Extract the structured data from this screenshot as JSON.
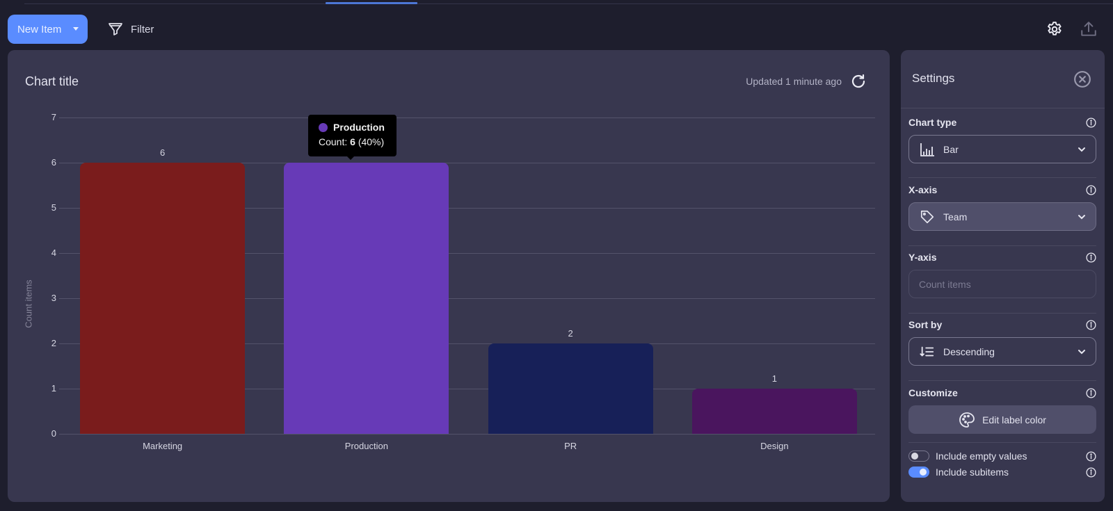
{
  "toolbar": {
    "new_item_label": "New Item",
    "filter_label": "Filter",
    "icons": {
      "filter": "filter-funnel-icon",
      "settings": "gear-icon",
      "export": "upload-icon"
    }
  },
  "colors": {
    "background": "#1e1e2d",
    "card": "#38374f",
    "primary": "#5a8cff",
    "tab_indicator": "#4d77d6"
  },
  "chart_card": {
    "title": "Chart title",
    "updated_text": "Updated 1 minute ago",
    "refresh_icon": "refresh-icon"
  },
  "tooltip": {
    "series": "Production",
    "color": "#673ab7",
    "count_prefix": "Count: ",
    "count_value": "6",
    "count_pct": " (40%)"
  },
  "chart_data": {
    "type": "bar",
    "title": "Chart title",
    "xlabel": "",
    "ylabel": "Count items",
    "categories": [
      "Marketing",
      "Production",
      "PR",
      "Design"
    ],
    "values": [
      6,
      6,
      2,
      1
    ],
    "colors": [
      "#7a1c1c",
      "#673ab7",
      "#172058",
      "#4a155e"
    ],
    "yticks": [
      0,
      1,
      2,
      3,
      4,
      5,
      6,
      7
    ],
    "ylim": [
      0,
      7
    ],
    "grid": true,
    "legend": "none",
    "data_labels": true
  },
  "settings": {
    "title": "Settings",
    "close_icon": "close-circle-icon",
    "chart_type": {
      "label": "Chart type",
      "value": "Bar",
      "icon": "bar-chart-icon"
    },
    "x_axis": {
      "label": "X-axis",
      "value": "Team",
      "icon": "tag-icon"
    },
    "y_axis": {
      "label": "Y-axis",
      "placeholder": "Count items"
    },
    "sort_by": {
      "label": "Sort by",
      "value": "Descending",
      "icon": "sort-descending-icon"
    },
    "customize": {
      "label": "Customize",
      "button_label": "Edit label color",
      "icon": "palette-icon"
    },
    "toggles": [
      {
        "label": "Include empty values",
        "on": false
      },
      {
        "label": "Include subitems",
        "on": true
      }
    ]
  }
}
